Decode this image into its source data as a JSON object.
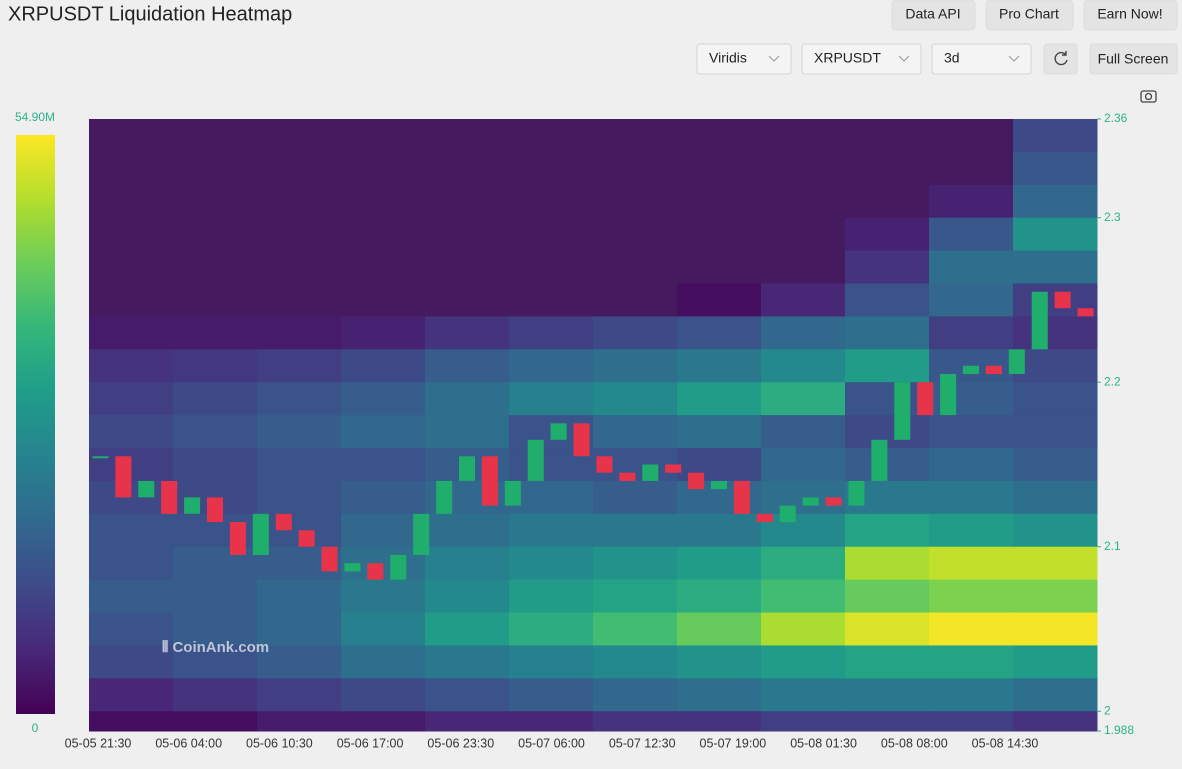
{
  "header": {
    "title": "XRPUSDT Liquidation Heatmap",
    "buttons": [
      "Data API",
      "Pro Chart",
      "Earn Now!"
    ],
    "full_screen": "Full Screen"
  },
  "controls": {
    "symbol": "XRPUSDT",
    "range": "3d"
  },
  "chart_data": {
    "type": "heatmap",
    "watermark": "CoinAnk.com",
    "colorscale": "Viridis",
    "colorbar_ticks": [
      {
        "value": 54.9,
        "label": "54.90M"
      },
      0
    ],
    "colorbar_lim": [
      0,
      54.9
    ],
    "categories": [
      "05-05 21:30",
      "05-06 04:00",
      "05-06 10:30",
      "05-06 17:00",
      "05-06 23:30",
      "05-07 06:00",
      "05-07 12:30",
      "05-07 19:00",
      "05-08 01:30",
      "05-08 08:00",
      "05-08 14:30"
    ],
    "ylim": [
      1.988,
      2.36
    ],
    "yticks": [
      1.988,
      2,
      2.1,
      2.2,
      2.3,
      2.36
    ],
    "heat": {
      "y": [
        2.35,
        2.33,
        2.31,
        2.29,
        2.27,
        2.25,
        2.23,
        2.21,
        2.19,
        2.17,
        2.15,
        2.13,
        2.11,
        2.09,
        2.07,
        2.05,
        2.03,
        2.01,
        1.99
      ],
      "values": [
        [
          0,
          0,
          0,
          0,
          0,
          0,
          0,
          0,
          0,
          0,
          0,
          12
        ],
        [
          0,
          0,
          0,
          0,
          0,
          0,
          0,
          0,
          0,
          0,
          0,
          15
        ],
        [
          0,
          0,
          0,
          0,
          0,
          0,
          0,
          0,
          0,
          0,
          5,
          18
        ],
        [
          0,
          0,
          0,
          0,
          0,
          0,
          0,
          0,
          0,
          5,
          15,
          28
        ],
        [
          0,
          0,
          0,
          0,
          0,
          0,
          0,
          0,
          0,
          8,
          20,
          20
        ],
        [
          0,
          0,
          0,
          0,
          0,
          0,
          0,
          2,
          6,
          14,
          18,
          10
        ],
        [
          4,
          4,
          4,
          5,
          8,
          10,
          12,
          14,
          18,
          20,
          10,
          8
        ],
        [
          8,
          9,
          10,
          12,
          16,
          18,
          20,
          22,
          26,
          30,
          15,
          12
        ],
        [
          10,
          12,
          14,
          16,
          20,
          24,
          26,
          30,
          34,
          14,
          16,
          14
        ],
        [
          12,
          14,
          16,
          18,
          20,
          14,
          18,
          20,
          16,
          12,
          14,
          14
        ],
        [
          10,
          12,
          14,
          14,
          16,
          14,
          14,
          12,
          18,
          16,
          18,
          16
        ],
        [
          12,
          12,
          14,
          16,
          18,
          18,
          16,
          18,
          20,
          22,
          22,
          20
        ],
        [
          14,
          14,
          14,
          18,
          20,
          22,
          22,
          22,
          26,
          32,
          30,
          28
        ],
        [
          14,
          16,
          16,
          20,
          24,
          26,
          28,
          30,
          34,
          48,
          50,
          50
        ],
        [
          16,
          16,
          18,
          22,
          26,
          30,
          32,
          34,
          38,
          42,
          44,
          44
        ],
        [
          14,
          16,
          18,
          24,
          30,
          34,
          38,
          42,
          48,
          52,
          54,
          54
        ],
        [
          12,
          14,
          16,
          20,
          22,
          24,
          26,
          28,
          30,
          32,
          32,
          30
        ],
        [
          6,
          8,
          10,
          12,
          14,
          16,
          18,
          20,
          22,
          22,
          22,
          20
        ],
        [
          2,
          2,
          4,
          4,
          6,
          6,
          8,
          8,
          10,
          10,
          10,
          8
        ]
      ]
    },
    "price": {
      "up_color": "#1fae6b",
      "down_color": "#e8344a",
      "values": [
        2.155,
        2.13,
        2.14,
        2.12,
        2.13,
        2.115,
        2.095,
        2.12,
        2.11,
        2.1,
        2.085,
        2.09,
        2.08,
        2.095,
        2.12,
        2.14,
        2.155,
        2.125,
        2.14,
        2.165,
        2.175,
        2.155,
        2.145,
        2.14,
        2.15,
        2.145,
        2.135,
        2.14,
        2.12,
        2.115,
        2.125,
        2.13,
        2.125,
        2.14,
        2.165,
        2.2,
        2.18,
        2.205,
        2.21,
        2.205,
        2.22,
        2.255,
        2.245,
        2.24
      ]
    }
  }
}
